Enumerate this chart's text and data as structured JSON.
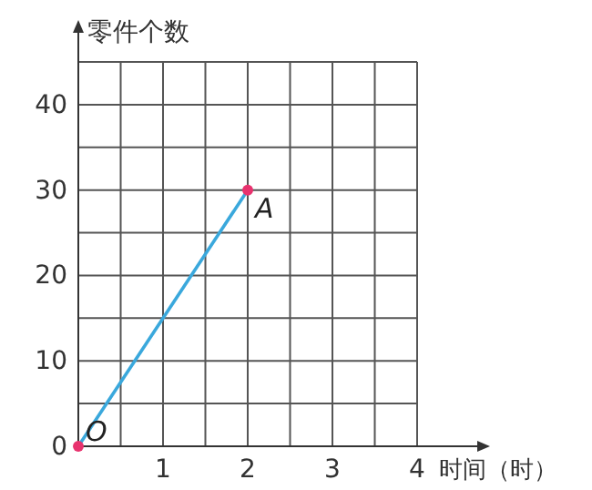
{
  "chart_data": {
    "type": "line",
    "xlabel": "时间（时）",
    "ylabel": "零件个数",
    "xlim": [
      0,
      4
    ],
    "ylim": [
      0,
      45
    ],
    "xticks": [
      {
        "value": 0.5,
        "label": null
      },
      1,
      {
        "value": 1.5,
        "label": null
      },
      2,
      {
        "value": 2.5,
        "label": null
      },
      3,
      {
        "value": 3.5,
        "label": null
      },
      4
    ],
    "yticks": [
      0,
      {
        "value": 5,
        "label": null
      },
      10,
      {
        "value": 15,
        "label": null
      },
      20,
      {
        "value": 25,
        "label": null
      },
      30,
      {
        "value": 35,
        "label": null
      },
      40,
      {
        "value": 45,
        "label": null
      }
    ],
    "grid": true,
    "x": [
      0,
      2
    ],
    "series": [
      {
        "color": "#3aa8dc",
        "values": [
          0,
          30
        ],
        "marker": "none"
      },
      {
        "type": "scatter",
        "color": "#e8326e",
        "values": [
          0,
          30
        ],
        "marker": "circle"
      }
    ],
    "annotations": [
      {
        "text": "O",
        "x": 0,
        "y": 0
      },
      {
        "text": "A",
        "x": 2,
        "y": 30
      }
    ]
  }
}
